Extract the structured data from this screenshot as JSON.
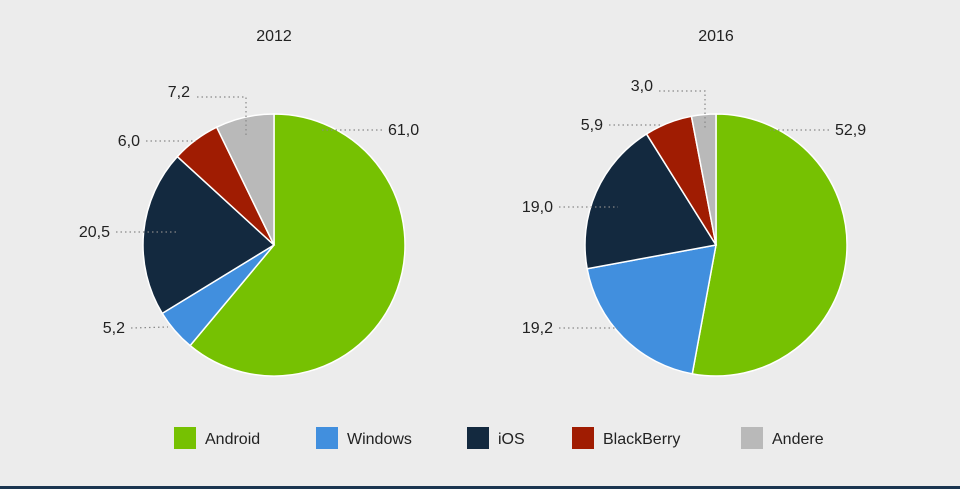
{
  "colors": {
    "Android": "#76c102",
    "Windows": "#418fde",
    "iOS": "#13293f",
    "BlackBerry": "#a01c02",
    "Andere": "#b9b9b9"
  },
  "legend": [
    "Android",
    "Windows",
    "iOS",
    "BlackBerry",
    "Andere"
  ],
  "chart_data": [
    {
      "type": "pie",
      "title": "2012",
      "categories": [
        "Android",
        "Windows",
        "iOS",
        "BlackBerry",
        "Andere"
      ],
      "values": [
        61.0,
        5.2,
        20.5,
        6.0,
        7.2
      ],
      "labels": [
        "61,0",
        "5,2",
        "20,5",
        "6,0",
        "7,2"
      ]
    },
    {
      "type": "pie",
      "title": "2016",
      "categories": [
        "Android",
        "Windows",
        "iOS",
        "BlackBerry",
        "Andere"
      ],
      "values": [
        52.9,
        19.2,
        19.0,
        5.9,
        3.0
      ],
      "labels": [
        "52,9",
        "19,2",
        "19,0",
        "5,9",
        "3,0"
      ]
    }
  ]
}
